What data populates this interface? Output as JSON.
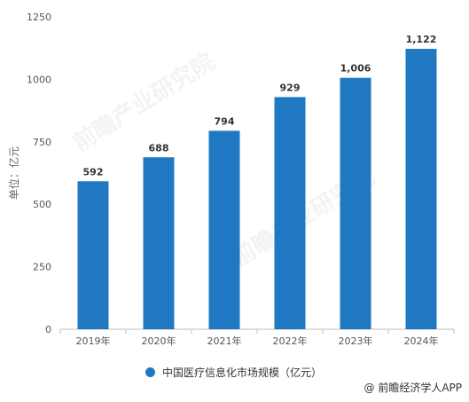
{
  "chart_data": {
    "type": "bar",
    "categories": [
      "2019年",
      "2020年",
      "2021年",
      "2022年",
      "2023年",
      "2024年"
    ],
    "values": [
      592,
      688,
      794,
      929,
      1006,
      1122
    ],
    "value_labels": [
      "592",
      "688",
      "794",
      "929",
      "1,006",
      "1,122"
    ],
    "ylabel": "单位：亿元",
    "ylim": [
      0,
      1250
    ],
    "yticks": [
      0,
      250,
      500,
      750,
      1000,
      1250
    ],
    "ytick_labels": [
      "0",
      "250",
      "500",
      "750",
      "1000",
      "1250"
    ],
    "series": [
      {
        "name": "中国医疗信息化市场规模（亿元）",
        "color": "#1f78c1"
      }
    ],
    "legend_position": "bottom",
    "grid": false
  },
  "watermark": "前瞻产业研究院",
  "credit": "@ 前瞻经济学人APP"
}
